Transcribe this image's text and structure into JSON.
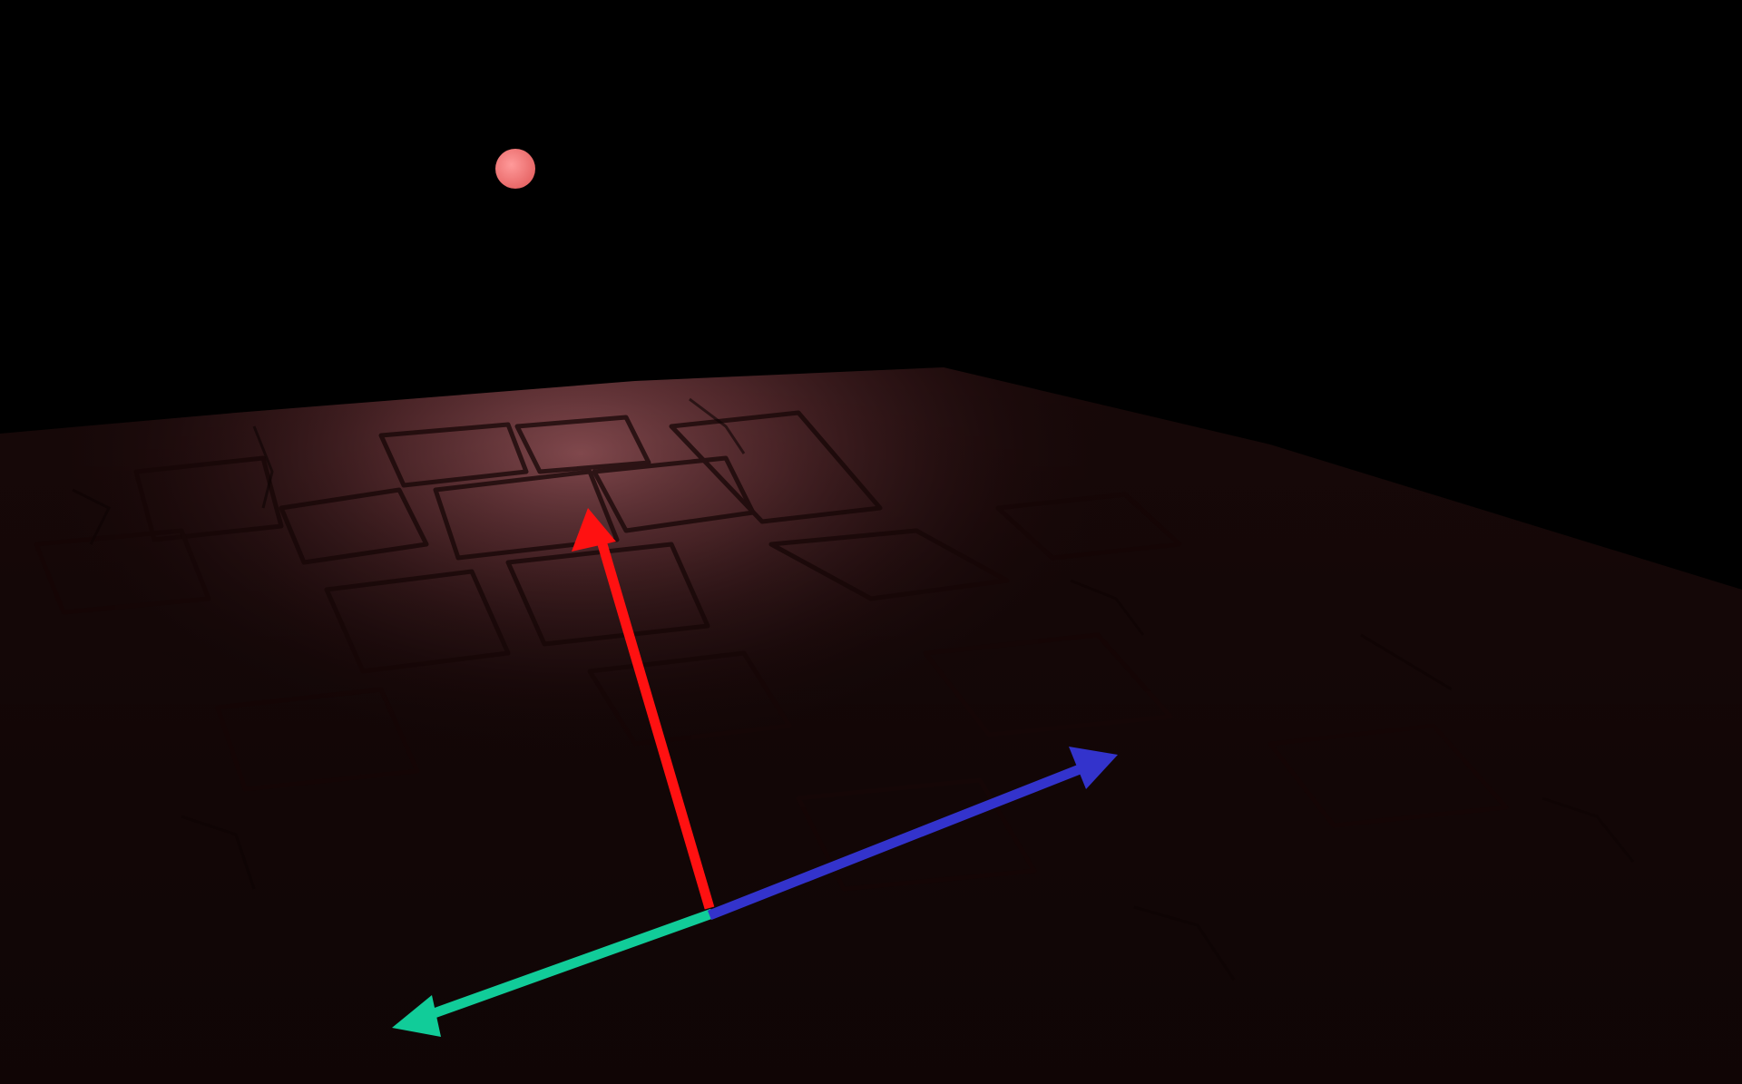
{
  "scene": {
    "background_color": "#000000",
    "floor": {
      "texture": "stone-tiles",
      "base_color": "#1c0a0a",
      "lit_color": "#8a4e52"
    },
    "light_source": {
      "icon": "point-light-sphere",
      "color": "#f07a7a"
    },
    "gizmo": {
      "arrows": [
        {
          "name": "normal-arrow",
          "color": "#ff1111"
        },
        {
          "name": "tangent-arrow",
          "color": "#3333cc"
        },
        {
          "name": "bitangent-arrow",
          "color": "#11cc99"
        }
      ]
    }
  }
}
